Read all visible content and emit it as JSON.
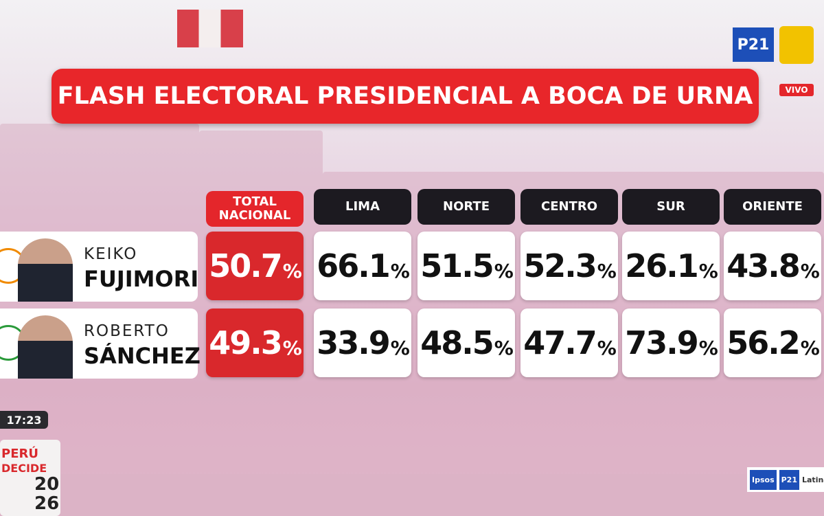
{
  "header": {
    "title": "FLASH ELECTORAL PRESIDENCIAL A BOCA DE URNA",
    "live": "VIVO",
    "channel": "P21",
    "time": "17:23"
  },
  "table": {
    "columns": [
      "TOTAL NACIONAL",
      "LIMA",
      "NORTE",
      "CENTRO",
      "SUR",
      "ORIENTE"
    ],
    "unit": "%",
    "rows": [
      {
        "first_name": "KEIKO",
        "last_name": "FUJIMORI",
        "values": [
          50.7,
          66.1,
          51.5,
          52.3,
          26.1,
          43.8
        ]
      },
      {
        "first_name": "ROBERTO",
        "last_name": "SÁNCHEZ",
        "values": [
          49.3,
          33.9,
          48.5,
          47.7,
          73.9,
          56.2
        ]
      }
    ]
  },
  "footer": {
    "brand": [
      "PERÚ",
      "DECIDE"
    ],
    "year": [
      "20",
      "26"
    ],
    "sources": [
      "Ipsos",
      "P21",
      "Latina"
    ]
  }
}
